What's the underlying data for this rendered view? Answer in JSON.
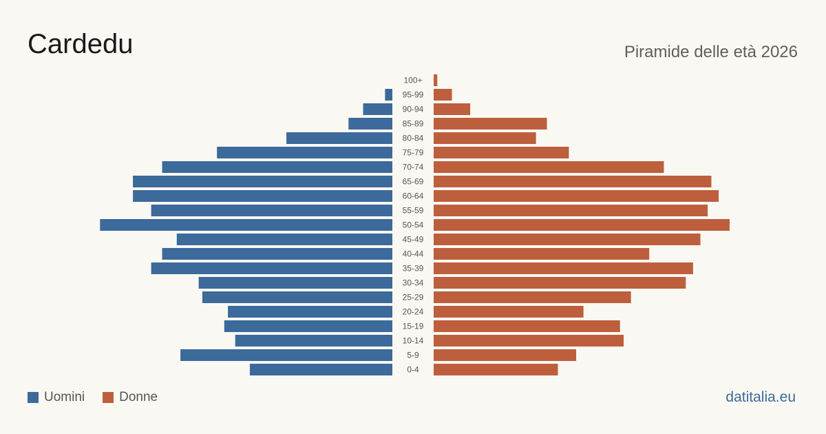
{
  "header": {
    "title": "Cardedu",
    "subtitle": "Piramide delle età 2026"
  },
  "legend": {
    "men_label": "Uomini",
    "women_label": "Donne"
  },
  "brand": "datitalia.eu",
  "colors": {
    "men": "#3b6a9b",
    "women": "#bd5f3d",
    "background": "#faf8f3",
    "age_label": "#555555"
  },
  "chart_data": {
    "type": "bar",
    "orientation": "horizontal-pyramid",
    "categories": [
      "100+",
      "95-99",
      "90-94",
      "85-89",
      "80-84",
      "75-79",
      "70-74",
      "65-69",
      "60-64",
      "55-59",
      "50-54",
      "45-49",
      "40-44",
      "35-39",
      "30-34",
      "25-29",
      "20-24",
      "15-19",
      "10-14",
      "5-9",
      "0-4"
    ],
    "series": [
      {
        "name": "Uomini",
        "values": [
          0,
          2,
          8,
          12,
          29,
          48,
          63,
          71,
          71,
          66,
          80,
          59,
          63,
          66,
          53,
          52,
          45,
          46,
          43,
          58,
          39
        ]
      },
      {
        "name": "Donne",
        "values": [
          1,
          5,
          10,
          31,
          28,
          37,
          63,
          76,
          78,
          75,
          81,
          73,
          59,
          71,
          69,
          54,
          41,
          51,
          52,
          39,
          34
        ]
      }
    ],
    "grid": false,
    "legend_position": "bottom-left"
  }
}
